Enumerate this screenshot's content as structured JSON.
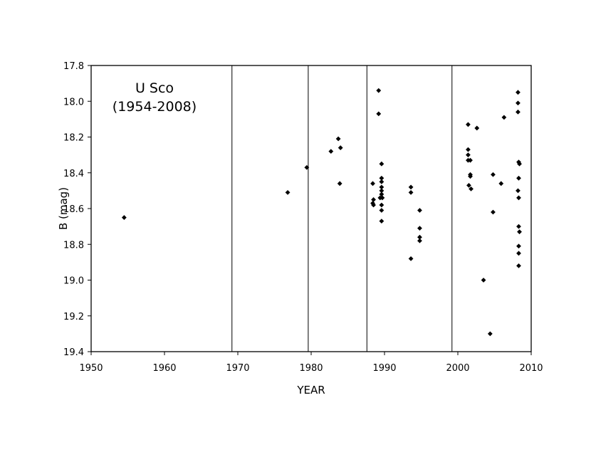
{
  "chart_data": {
    "type": "scatter",
    "annotation_lines": [
      "U Sco",
      "(1954-2008)"
    ],
    "xlabel": "YEAR",
    "ylabel": "B (mag)",
    "xlim": [
      1950,
      2010
    ],
    "ylim": [
      17.8,
      19.4
    ],
    "y_inverted": true,
    "grid": false,
    "legend": "none",
    "marker": "diamond",
    "marker_color": "#000000",
    "x_ticks": [
      "1950",
      "1960",
      "1970",
      "1980",
      "1990",
      "2000",
      "2010"
    ],
    "y_ticks": [
      "17.8",
      "18.0",
      "18.2",
      "18.4",
      "18.6",
      "18.8",
      "19.0",
      "19.2",
      "19.4"
    ],
    "eruption_years": [
      1969.2,
      1979.6,
      1987.6,
      1999.2
    ],
    "points": [
      [
        1954.5,
        18.65
      ],
      [
        1976.8,
        18.51
      ],
      [
        1979.4,
        18.37
      ],
      [
        1982.7,
        18.28
      ],
      [
        1983.7,
        18.21
      ],
      [
        1984.0,
        18.26
      ],
      [
        1983.9,
        18.46
      ],
      [
        1988.4,
        18.46
      ],
      [
        1988.5,
        18.55
      ],
      [
        1988.4,
        18.57
      ],
      [
        1988.5,
        18.58
      ],
      [
        1989.2,
        17.94
      ],
      [
        1989.2,
        18.07
      ],
      [
        1989.6,
        18.35
      ],
      [
        1989.6,
        18.43
      ],
      [
        1989.6,
        18.45
      ],
      [
        1989.6,
        18.48
      ],
      [
        1989.6,
        18.5
      ],
      [
        1989.6,
        18.52
      ],
      [
        1989.4,
        18.54
      ],
      [
        1989.7,
        18.54
      ],
      [
        1989.6,
        18.58
      ],
      [
        1989.6,
        18.61
      ],
      [
        1989.6,
        18.67
      ],
      [
        1993.6,
        18.48
      ],
      [
        1993.6,
        18.51
      ],
      [
        1993.6,
        18.88
      ],
      [
        1994.8,
        18.61
      ],
      [
        1994.8,
        18.71
      ],
      [
        1994.8,
        18.76
      ],
      [
        1994.8,
        18.78
      ],
      [
        2001.4,
        18.13
      ],
      [
        2001.4,
        18.27
      ],
      [
        2001.4,
        18.3
      ],
      [
        2001.4,
        18.33
      ],
      [
        2001.7,
        18.33
      ],
      [
        2001.7,
        18.41
      ],
      [
        2001.7,
        18.42
      ],
      [
        2001.5,
        18.47
      ],
      [
        2001.8,
        18.49
      ],
      [
        2002.6,
        18.15
      ],
      [
        2003.5,
        19.0
      ],
      [
        2004.4,
        19.3
      ],
      [
        2004.8,
        18.41
      ],
      [
        2004.8,
        18.62
      ],
      [
        2005.9,
        18.46
      ],
      [
        2006.3,
        18.09
      ],
      [
        2008.2,
        17.95
      ],
      [
        2008.2,
        18.01
      ],
      [
        2008.2,
        18.06
      ],
      [
        2008.3,
        18.34
      ],
      [
        2008.4,
        18.35
      ],
      [
        2008.3,
        18.43
      ],
      [
        2008.2,
        18.5
      ],
      [
        2008.3,
        18.54
      ],
      [
        2008.3,
        18.7
      ],
      [
        2008.4,
        18.73
      ],
      [
        2008.3,
        18.81
      ],
      [
        2008.3,
        18.85
      ],
      [
        2008.3,
        18.92
      ]
    ]
  }
}
